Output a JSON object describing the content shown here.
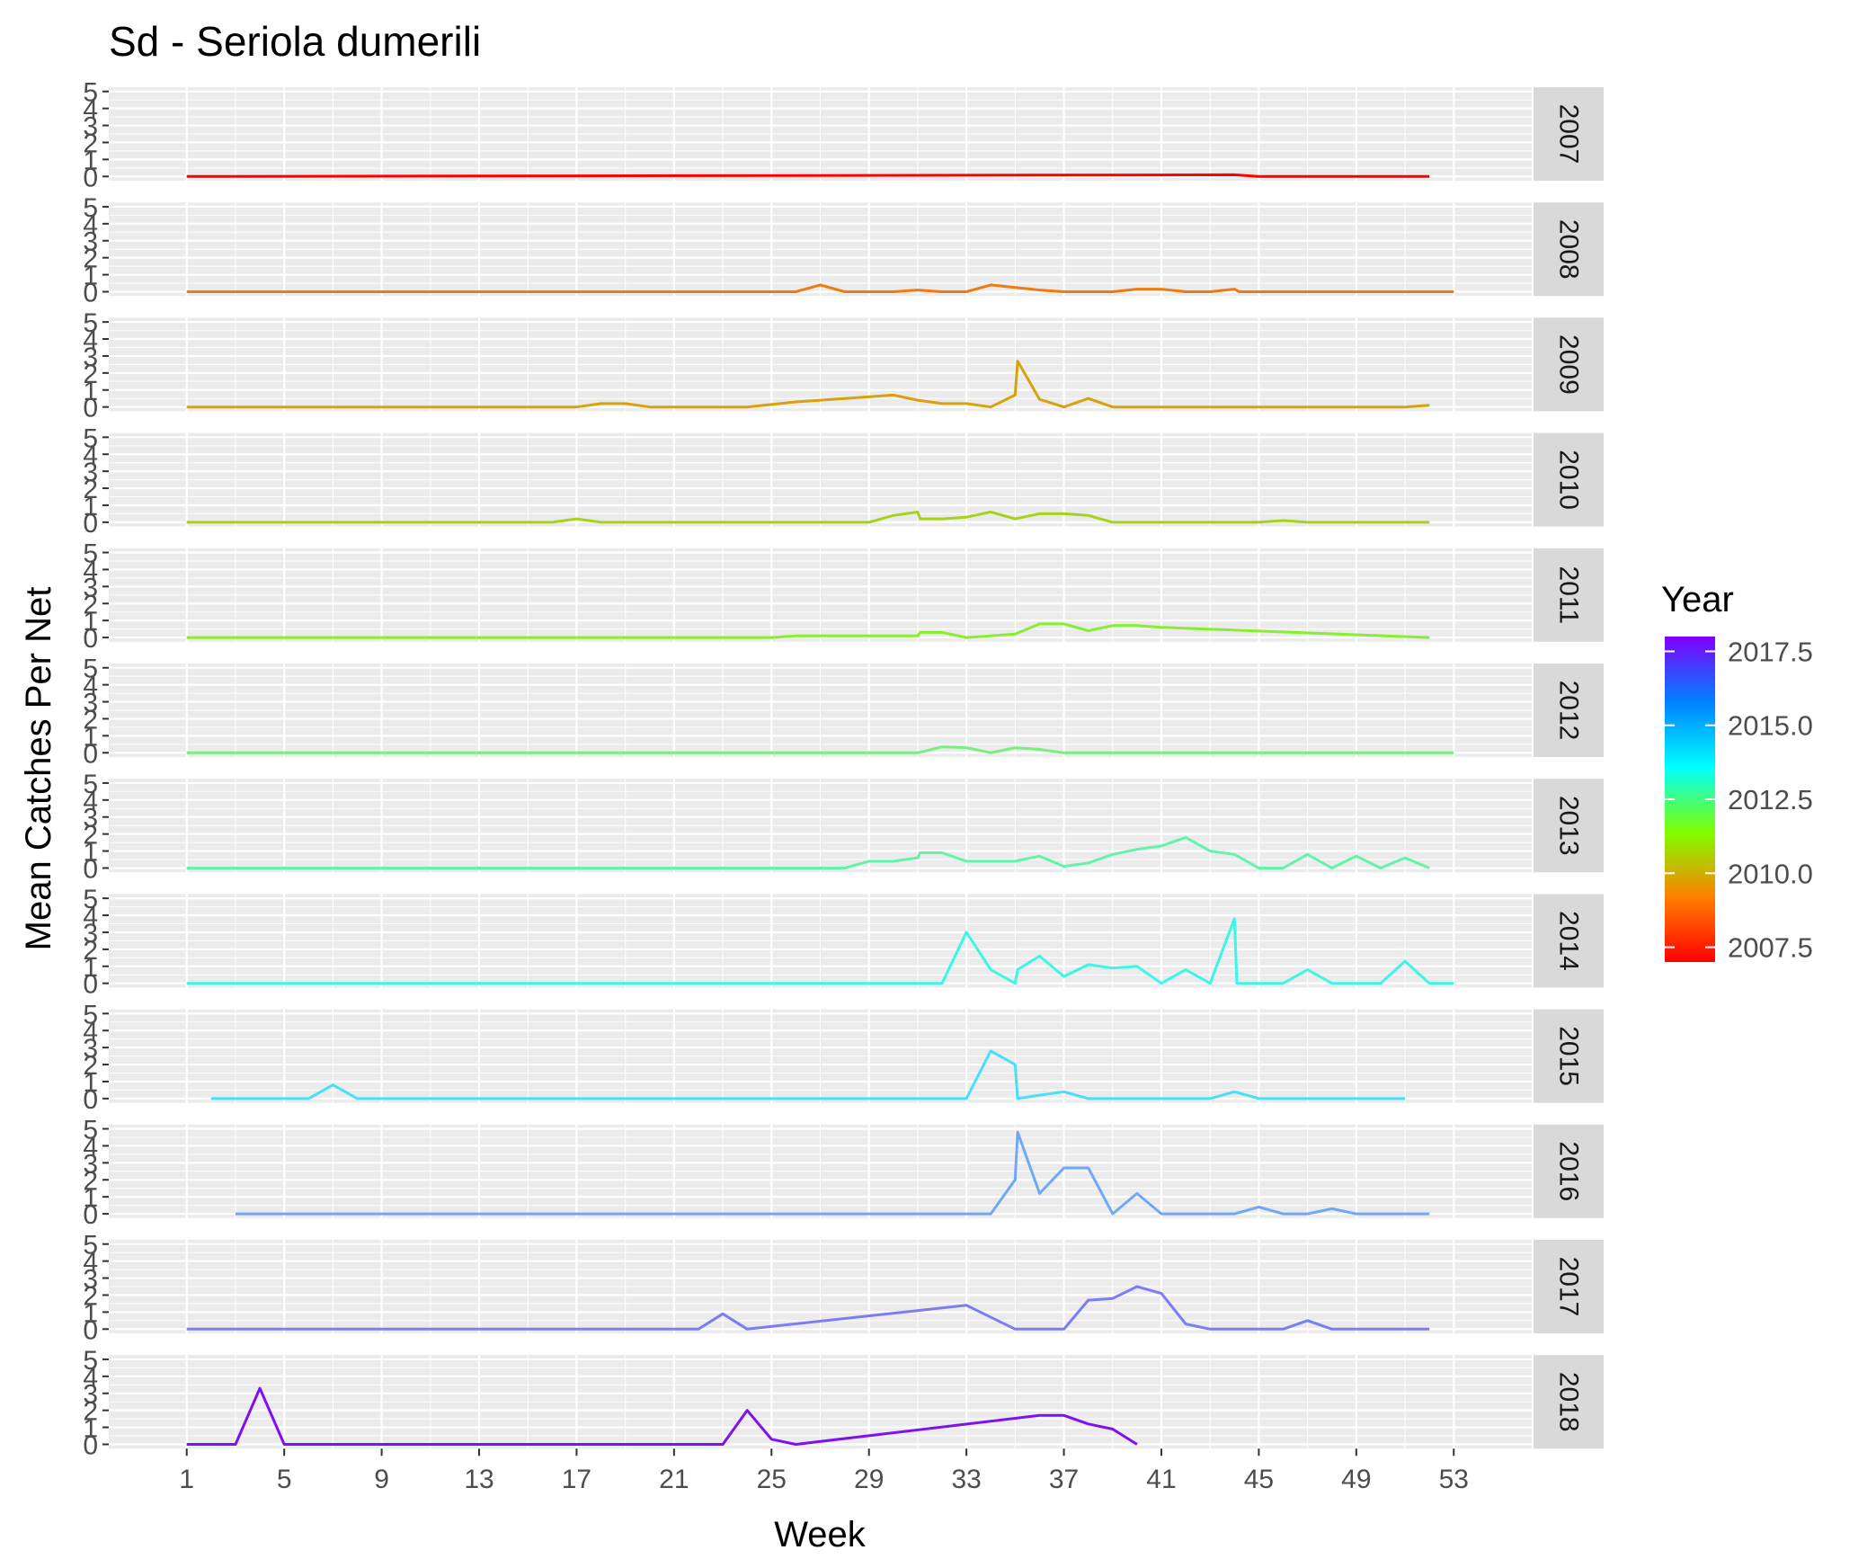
{
  "chart_data": {
    "type": "line",
    "title": "Sd - Seriola dumerili",
    "xlabel": "Week",
    "ylabel": "Mean Catches Per Net",
    "xlim": [
      -2.2,
      56.2
    ],
    "ylim": [
      -0.25,
      5.25
    ],
    "x_ticks": [
      1,
      5,
      9,
      13,
      17,
      21,
      25,
      29,
      33,
      37,
      41,
      45,
      49,
      53
    ],
    "y_ticks": [
      0,
      1,
      2,
      3,
      4,
      5
    ],
    "facet_by": "Year",
    "grid": true,
    "legend": {
      "title": "Year",
      "position": "right",
      "type": "colorbar",
      "breaks": [
        "2017.5",
        "2015.0",
        "2012.5",
        "2010.0",
        "2007.5"
      ],
      "break_values": [
        2017.5,
        2015.0,
        2012.5,
        2010.0,
        2007.5
      ],
      "limits": [
        2007,
        2018
      ],
      "colors": [
        "#FF0000",
        "#FF8000",
        "#80FF00",
        "#00FFFF",
        "#0080FF",
        "#8000FF"
      ]
    },
    "series": [
      {
        "name": "2007",
        "color": "#FF0000",
        "x": [
          1,
          44,
          45,
          52
        ],
        "y": [
          0,
          0.1,
          0,
          0
        ]
      },
      {
        "name": "2008",
        "color": "#F07A10",
        "x": [
          1,
          26,
          27,
          28,
          30,
          31,
          32,
          33,
          34,
          35,
          36,
          37,
          38,
          39,
          40,
          41,
          42,
          43,
          44,
          44.2,
          53
        ],
        "y": [
          0,
          0,
          0.4,
          0,
          0,
          0.1,
          0,
          0,
          0.4,
          0.25,
          0.1,
          0,
          0,
          0,
          0.15,
          0.15,
          0,
          0,
          0.15,
          0,
          0
        ]
      },
      {
        "name": "2009",
        "color": "#D9A20A",
        "x": [
          1,
          17,
          18,
          19,
          20,
          22,
          24,
          26,
          28,
          30,
          31,
          32,
          33,
          34,
          35,
          35.1,
          36,
          37,
          38,
          39,
          40,
          44,
          51,
          52
        ],
        "y": [
          0,
          0,
          0.2,
          0.2,
          0,
          0,
          0,
          0.3,
          0.5,
          0.7,
          0.4,
          0.2,
          0.2,
          0,
          0.7,
          2.7,
          0.45,
          0,
          0.5,
          0,
          0,
          0,
          0,
          0.1
        ]
      },
      {
        "name": "2010",
        "color": "#A8D11A",
        "x": [
          1,
          16,
          17,
          18,
          29,
          30,
          31,
          31.1,
          32,
          33,
          34,
          35,
          36,
          37,
          38,
          39,
          40,
          45,
          46,
          47,
          52
        ],
        "y": [
          0,
          0,
          0.2,
          0,
          0,
          0.4,
          0.6,
          0.2,
          0.2,
          0.3,
          0.6,
          0.2,
          0.5,
          0.5,
          0.4,
          0,
          0,
          0,
          0.1,
          0,
          0
        ]
      },
      {
        "name": "2011",
        "color": "#88EE30",
        "x": [
          1,
          25,
          26,
          31,
          31.1,
          32,
          33,
          34,
          35,
          36,
          37,
          38,
          39,
          40,
          41,
          52
        ],
        "y": [
          0,
          0,
          0.1,
          0.1,
          0.3,
          0.3,
          0,
          0.1,
          0.2,
          0.8,
          0.8,
          0.4,
          0.7,
          0.7,
          0.6,
          0
        ]
      },
      {
        "name": "2012",
        "color": "#78F080",
        "x": [
          1,
          31,
          32,
          33,
          34,
          35,
          36,
          37,
          53
        ],
        "y": [
          0,
          0,
          0.35,
          0.3,
          0,
          0.3,
          0.2,
          0,
          0
        ]
      },
      {
        "name": "2013",
        "color": "#62F4A8",
        "x": [
          1,
          28,
          29,
          30,
          31,
          31.1,
          32,
          33,
          34,
          35,
          36,
          37,
          38,
          39,
          40,
          41,
          42,
          43,
          44,
          45,
          46,
          47,
          48,
          49,
          50,
          51,
          52
        ],
        "y": [
          0,
          0,
          0.4,
          0.4,
          0.6,
          0.9,
          0.9,
          0.4,
          0.4,
          0.4,
          0.7,
          0.1,
          0.3,
          0.8,
          1.1,
          1.3,
          1.8,
          1.0,
          0.8,
          0,
          0,
          0.8,
          0,
          0.7,
          0,
          0.6,
          0
        ]
      },
      {
        "name": "2014",
        "color": "#3CF6E6",
        "x": [
          1,
          32,
          33,
          34,
          35,
          35.1,
          36,
          37,
          38,
          39,
          40,
          41,
          42,
          43,
          44,
          44.1,
          45,
          46,
          47,
          48,
          49,
          50,
          51,
          52,
          53
        ],
        "y": [
          0,
          0,
          3.0,
          0.8,
          0,
          0.8,
          1.6,
          0.4,
          1.1,
          0.9,
          1.0,
          0,
          0.8,
          0,
          3.8,
          0,
          0,
          0,
          0.8,
          0,
          0,
          0,
          1.3,
          0,
          0
        ]
      },
      {
        "name": "2015",
        "color": "#4ADFF8",
        "x": [
          2,
          6,
          7,
          8,
          33,
          34,
          35,
          35.1,
          36,
          37,
          38,
          43,
          44,
          45,
          51
        ],
        "y": [
          0,
          0,
          0.8,
          0,
          0,
          2.8,
          2.0,
          0,
          0.2,
          0.4,
          0,
          0,
          0.4,
          0,
          0
        ]
      },
      {
        "name": "2016",
        "color": "#70A8F8",
        "x": [
          3,
          34,
          35,
          35.1,
          36,
          37,
          38,
          39,
          40,
          41,
          44,
          45,
          46,
          47,
          48,
          49,
          52
        ],
        "y": [
          0,
          0,
          2.0,
          4.8,
          1.2,
          2.7,
          2.7,
          0,
          1.2,
          0,
          0,
          0.4,
          0,
          0,
          0.3,
          0,
          0
        ]
      },
      {
        "name": "2017",
        "color": "#7C7CF4",
        "x": [
          1,
          22,
          23,
          24,
          33,
          35,
          36,
          37,
          38,
          39,
          40,
          41,
          42,
          43,
          46,
          47,
          48,
          52
        ],
        "y": [
          0,
          0,
          0.9,
          0,
          1.4,
          0,
          0,
          0,
          1.7,
          1.8,
          2.5,
          2.1,
          0.3,
          0,
          0,
          0.5,
          0,
          0
        ]
      },
      {
        "name": "2018",
        "color": "#8010F0",
        "x": [
          1,
          3,
          4,
          5,
          23,
          24,
          25,
          26,
          36,
          37,
          38,
          39,
          40
        ],
        "y": [
          0,
          0,
          3.3,
          0,
          0,
          2.0,
          0.3,
          0,
          1.7,
          1.7,
          1.2,
          0.9,
          0
        ]
      }
    ]
  }
}
